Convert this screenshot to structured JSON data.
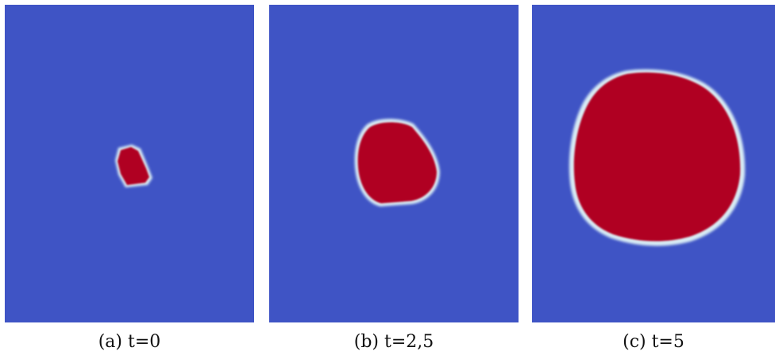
{
  "colors": {
    "background_field": "#3f54c5",
    "droplet": "#b00423",
    "interface_light": "#d8ecf5"
  },
  "panels": [
    {
      "caption": "(a) t=0"
    },
    {
      "caption": "(b) t=2,5"
    },
    {
      "caption": "(c) t=5"
    }
  ]
}
